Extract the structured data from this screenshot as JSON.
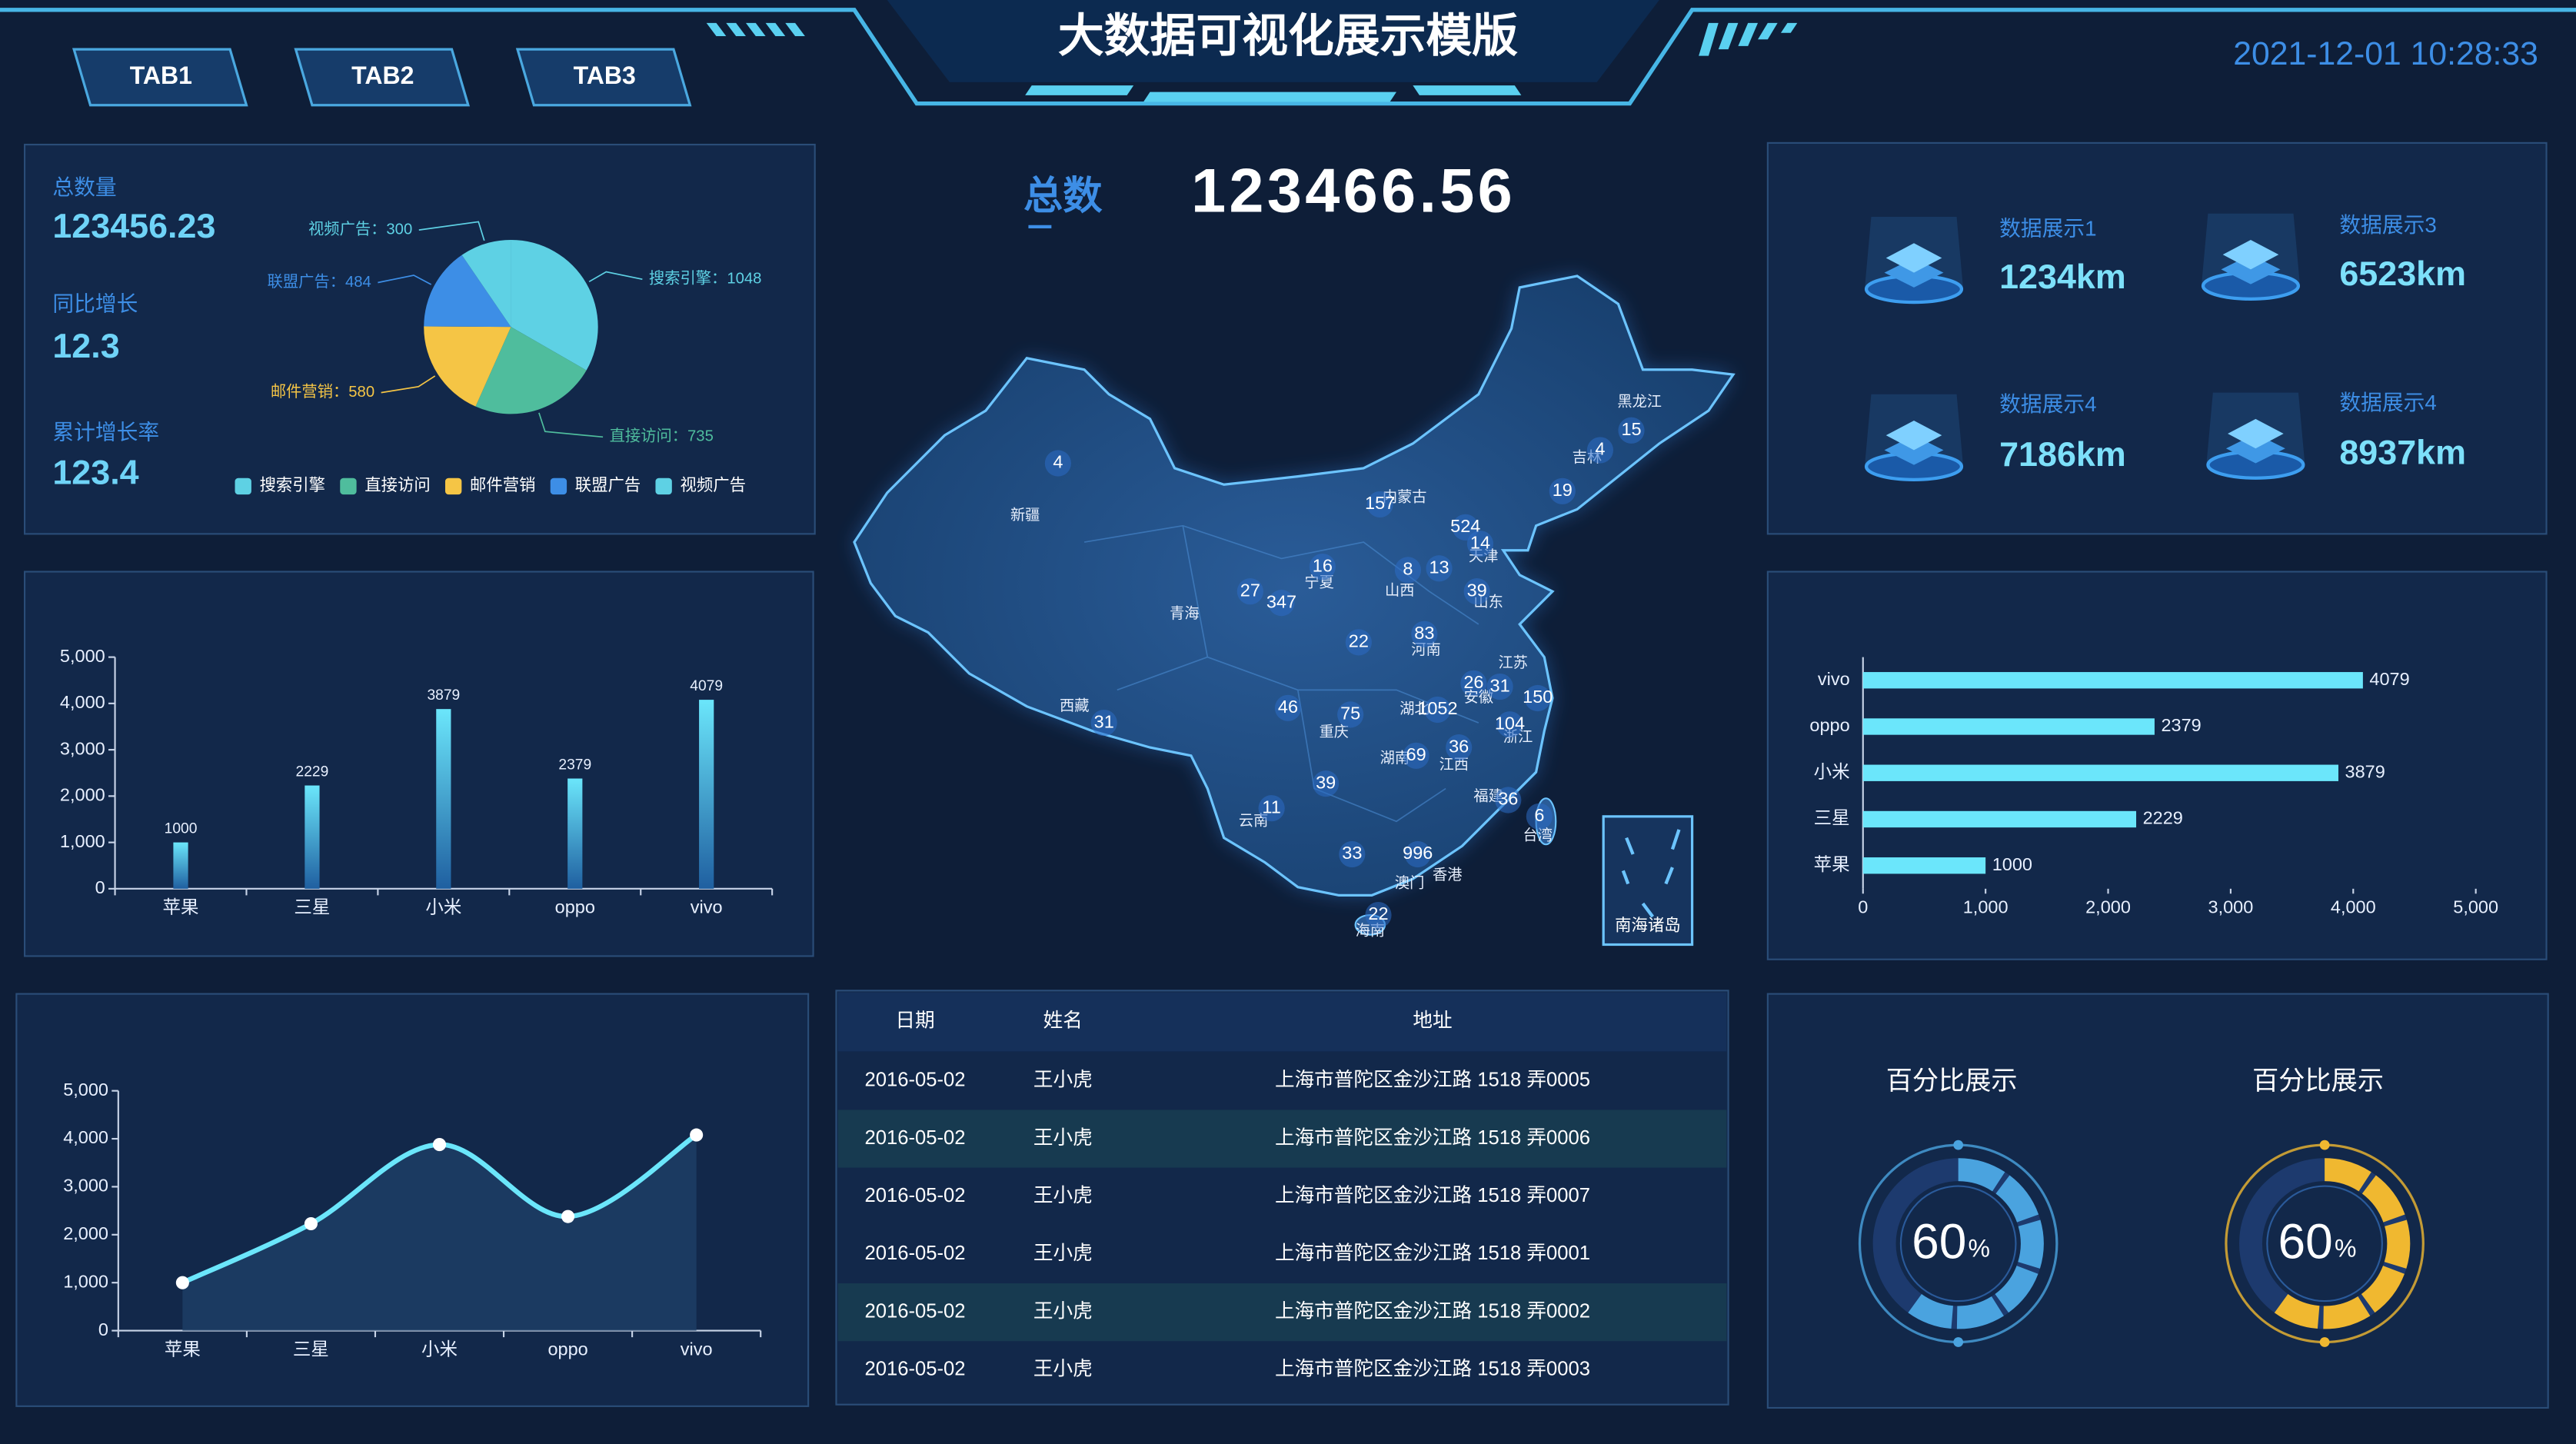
{
  "header": {
    "title": "大数据可视化展示模版",
    "tabs": [
      "TAB1",
      "TAB2",
      "TAB3"
    ],
    "datetime": "2021-12-01 10:28:33"
  },
  "summary": [
    {
      "label": "总数量",
      "value": "123456.23"
    },
    {
      "label": "同比增长",
      "value": "12.3"
    },
    {
      "label": "累计增长率",
      "value": "123.4"
    }
  ],
  "total": {
    "label": "总数",
    "value": "123466.56"
  },
  "stats": [
    {
      "label": "数据展示1",
      "value": "1234km"
    },
    {
      "label": "数据展示3",
      "value": "6523km"
    },
    {
      "label": "数据展示4",
      "value": "7186km"
    },
    {
      "label": "数据展示4",
      "value": "8937km"
    }
  ],
  "map": {
    "inset_label": "南海诸岛",
    "points": [
      {
        "name": "新疆",
        "value": 4
      },
      {
        "name": "西藏",
        "value": 31
      },
      {
        "name": "青海",
        "value": null
      },
      {
        "name": "内蒙古",
        "value": 157
      },
      {
        "name": "黑龙江",
        "value": 15
      },
      {
        "name": "吉林",
        "value": 4
      },
      {
        "name": null,
        "value": 19
      },
      {
        "name": null,
        "value": 524
      },
      {
        "name": "天津",
        "value": 14
      },
      {
        "name": "宁夏",
        "value": 16
      },
      {
        "name": null,
        "value": 27
      },
      {
        "name": null,
        "value": 347
      },
      {
        "name": "山西",
        "value": 8
      },
      {
        "name": null,
        "value": 13
      },
      {
        "name": "山东",
        "value": 39
      },
      {
        "name": "河南",
        "value": 83
      },
      {
        "name": null,
        "value": 22
      },
      {
        "name": "江苏",
        "value": 26
      },
      {
        "name": "安徽",
        "value": 31
      },
      {
        "name": null,
        "value": 150
      },
      {
        "name": "浙江",
        "value": 104
      },
      {
        "name": "湖北",
        "value": 1052
      },
      {
        "name": null,
        "value": 46
      },
      {
        "name": "重庆",
        "value": 75
      },
      {
        "name": "湖南",
        "value": 69
      },
      {
        "name": "江西",
        "value": 36
      },
      {
        "name": "福建",
        "value": 36
      },
      {
        "name": "台湾",
        "value": 6
      },
      {
        "name": null,
        "value": 39
      },
      {
        "name": "云南",
        "value": 11
      },
      {
        "name": null,
        "value": 33
      },
      {
        "name": "香港",
        "value": 996
      },
      {
        "name": "澳门",
        "value": null
      },
      {
        "name": "海南",
        "value": 22
      }
    ]
  },
  "table": {
    "columns": [
      "日期",
      "姓名",
      "地址"
    ],
    "rows": [
      [
        "2016-05-02",
        "王小虎",
        "上海市普陀区金沙江路 1518 弄0005"
      ],
      [
        "2016-05-02",
        "王小虎",
        "上海市普陀区金沙江路 1518 弄0006"
      ],
      [
        "2016-05-02",
        "王小虎",
        "上海市普陀区金沙江路 1518 弄0007"
      ],
      [
        "2016-05-02",
        "王小虎",
        "上海市普陀区金沙江路 1518 弄0001"
      ],
      [
        "2016-05-02",
        "王小虎",
        "上海市普陀区金沙江路 1518 弄0002"
      ],
      [
        "2016-05-02",
        "王小虎",
        "上海市普陀区金沙江路 1518 弄0003"
      ]
    ]
  },
  "chart_data": [
    {
      "type": "bar",
      "categories": [
        "苹果",
        "三星",
        "小米",
        "oppo",
        "vivo"
      ],
      "values": [
        1000,
        2229,
        3879,
        2379,
        4079
      ],
      "color": "#6be6fb",
      "ylim": [
        0,
        5000
      ],
      "yticks": [
        0,
        {
          "value": 1000,
          "label": "1,000"
        },
        {
          "value": 2000,
          "label": "2,000"
        },
        {
          "value": 3000,
          "label": "3,000"
        },
        {
          "value": 4000,
          "label": "4,000"
        },
        {
          "value": 5000,
          "label": "5,000"
        }
      ]
    },
    {
      "type": "bar",
      "horizontal": true,
      "categories": [
        "苹果",
        "三星",
        "小米",
        "oppo",
        "vivo"
      ],
      "values": [
        1000,
        2229,
        3879,
        2379,
        4079
      ],
      "color": "#6be6fb",
      "xlim": [
        0,
        5000
      ],
      "xticks": [
        0,
        {
          "value": 1000,
          "label": "1,000"
        },
        {
          "value": 2000,
          "label": "2,000"
        },
        {
          "value": 3000,
          "label": "3,000"
        },
        {
          "value": 4000,
          "label": "4,000"
        },
        {
          "value": 5000,
          "label": "5,000"
        }
      ]
    },
    {
      "type": "line",
      "smooth": true,
      "area": true,
      "categories": [
        "苹果",
        "三星",
        "小米",
        "oppo",
        "vivo"
      ],
      "values": [
        1000,
        2229,
        3879,
        2379,
        4079
      ],
      "color": "#6be6fb",
      "ylim": [
        0,
        5000
      ],
      "yticks": [
        0,
        {
          "value": 1000,
          "label": "1,000"
        },
        {
          "value": 2000,
          "label": "2,000"
        },
        {
          "value": 3000,
          "label": "3,000"
        },
        {
          "value": 4000,
          "label": "4,000"
        },
        {
          "value": 5000,
          "label": "5,000"
        }
      ]
    },
    {
      "type": "pie",
      "categories": [
        "搜索引擎",
        "直接访问",
        "邮件营销",
        "联盟广告",
        "视频广告"
      ],
      "values": [
        1048,
        735,
        580,
        484,
        300
      ],
      "value_labels": [
        "搜索引擎：1048",
        "直接访问：735",
        "邮件营销：580",
        "联盟广告：484",
        "视频广告：300"
      ],
      "colors": [
        "#5ed1e4",
        "#4fbd9d",
        "#f5c545",
        "#3d8ee6",
        "#5ed1e4"
      ]
    },
    {
      "type": "gauge",
      "title": "百分比展示",
      "value": 60,
      "unit": "%",
      "color": "#4aa3df",
      "ylim": [
        0,
        100
      ]
    },
    {
      "type": "gauge",
      "title": "百分比展示",
      "value": 60,
      "unit": "%",
      "color": "#f0b830",
      "ylim": [
        0,
        100
      ]
    }
  ]
}
